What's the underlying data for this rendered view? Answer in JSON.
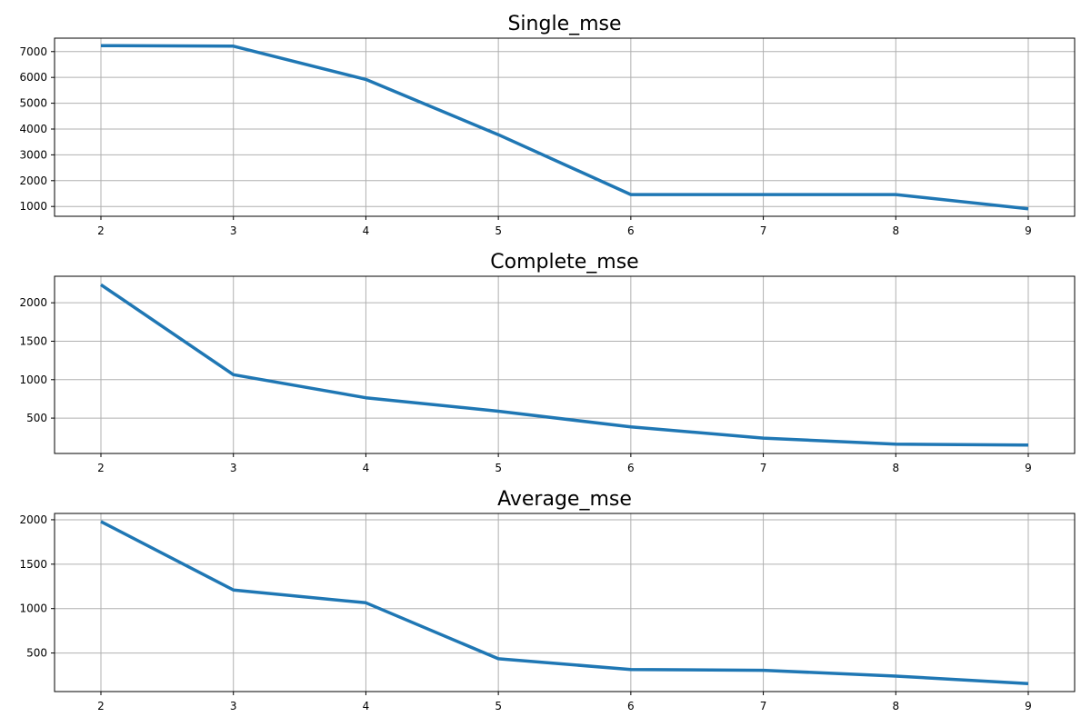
{
  "chart_data": [
    {
      "type": "line",
      "title": "Single_mse",
      "x": [
        2,
        3,
        4,
        5,
        6,
        7,
        8,
        9
      ],
      "series": [
        {
          "values": [
            7230,
            7210,
            5920,
            3780,
            1460,
            1460,
            1460,
            910
          ]
        }
      ],
      "xlim": [
        1.65,
        9.35
      ],
      "ylim": [
        620,
        7520
      ],
      "xticks": [
        2,
        3,
        4,
        5,
        6,
        7,
        8,
        9
      ],
      "yticks": [
        1000,
        2000,
        3000,
        4000,
        5000,
        6000,
        7000
      ],
      "grid": true,
      "color": "#1f77b4"
    },
    {
      "type": "line",
      "title": "Complete_mse",
      "x": [
        2,
        3,
        4,
        5,
        6,
        7,
        8,
        9
      ],
      "series": [
        {
          "values": [
            2235,
            1065,
            765,
            590,
            385,
            240,
            160,
            150
          ]
        }
      ],
      "xlim": [
        1.65,
        9.35
      ],
      "ylim": [
        40,
        2345
      ],
      "xticks": [
        2,
        3,
        4,
        5,
        6,
        7,
        8,
        9
      ],
      "yticks": [
        500,
        1000,
        1500,
        2000
      ],
      "grid": true,
      "color": "#1f77b4"
    },
    {
      "type": "line",
      "title": "Average_mse",
      "x": [
        2,
        3,
        4,
        5,
        6,
        7,
        8,
        9
      ],
      "series": [
        {
          "values": [
            1980,
            1210,
            1065,
            435,
            315,
            305,
            240,
            155
          ]
        }
      ],
      "xlim": [
        1.65,
        9.35
      ],
      "ylim": [
        66,
        2071
      ],
      "xticks": [
        2,
        3,
        4,
        5,
        6,
        7,
        8,
        9
      ],
      "yticks": [
        500,
        1000,
        1500,
        2000
      ],
      "grid": true,
      "color": "#1f77b4"
    }
  ]
}
